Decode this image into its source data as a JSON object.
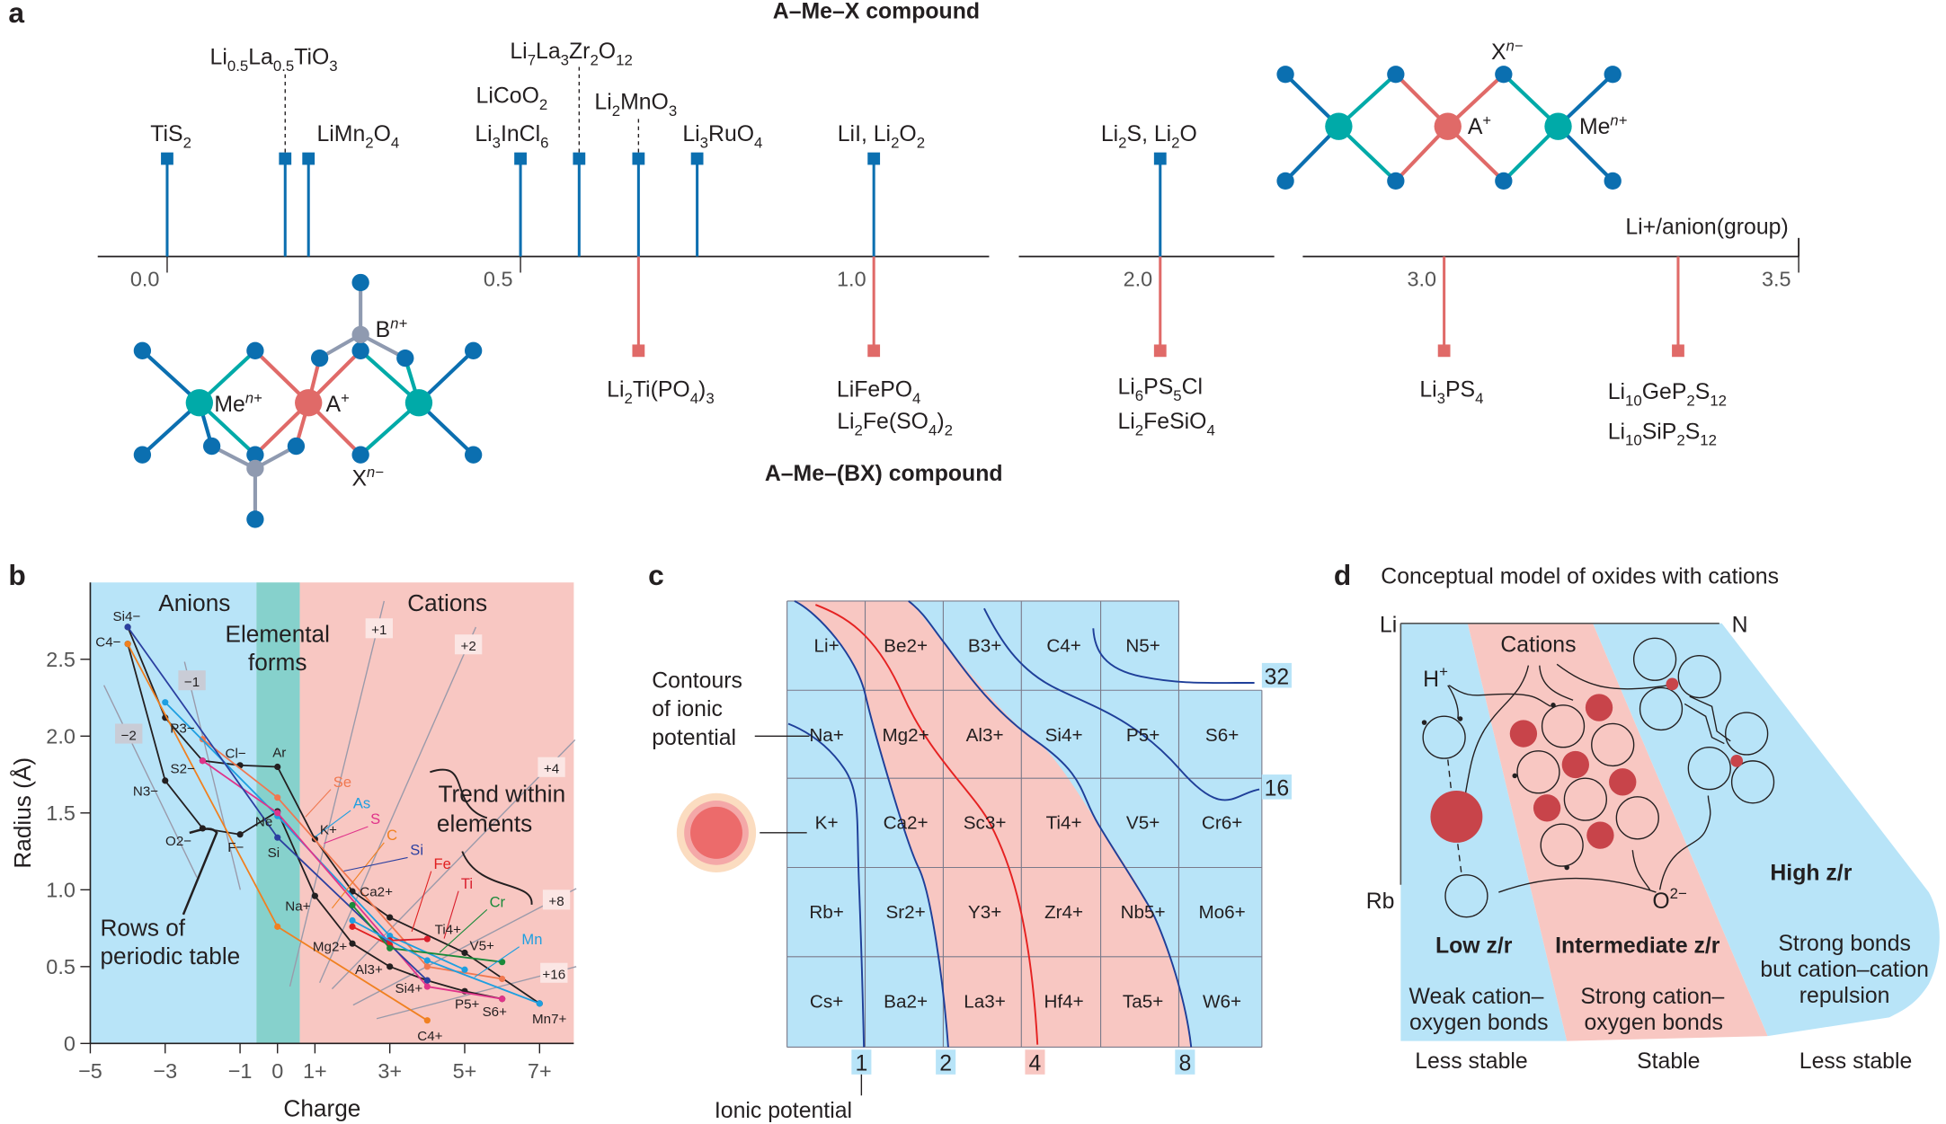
{
  "colors": {
    "anion_region": "#b8e4f8",
    "cation_region": "#f8c7c2",
    "elemental_region": "#86d1cc",
    "x_atom": "#0b6fb0",
    "a_atom": "#e06a68",
    "me_atom": "#00aaa8",
    "b_atom": "#8f9ab0",
    "contour_blue": "#1f3f99",
    "contour_red": "#e52222",
    "cation_dark": "#c8444a"
  },
  "panel_a": {
    "label": "a",
    "title_top": "A–Me–X compound",
    "title_bottom": "A–Me–(BX) compound",
    "axis_label": "Li+/anion(group)",
    "ticks": [
      {
        "label": "0.0",
        "value": 0.0
      },
      {
        "label": "0.5",
        "value": 0.5
      },
      {
        "label": "1.0",
        "value": 1.0
      },
      {
        "label": "2.0",
        "value": 2.0
      },
      {
        "label": "3.0",
        "value": 3.0
      },
      {
        "label": "3.5",
        "value": 3.5
      }
    ],
    "upper": [
      {
        "value": 0.0,
        "labels": [
          "TiS2"
        ]
      },
      {
        "value": 0.167,
        "labels": [
          "Li0.5La0.5TiO3"
        ],
        "dashed": true
      },
      {
        "value": 0.2,
        "labels": [
          "LiMn2O4"
        ]
      },
      {
        "value": 0.5,
        "labels": [
          "LiCoO2",
          "Li3InCl6"
        ]
      },
      {
        "value": 0.583,
        "labels": [
          "Li7La3Zr2O12"
        ],
        "dashed": true
      },
      {
        "value": 0.667,
        "labels": [
          "Li2MnO3"
        ],
        "dashed": true
      },
      {
        "value": 0.75,
        "labels": [
          "Li3RuO4"
        ]
      },
      {
        "value": 1.0,
        "labels": [
          "LiI, Li2O2"
        ]
      },
      {
        "value": 2.0,
        "labels": [
          "Li2S, Li2O"
        ]
      }
    ],
    "lower": [
      {
        "value": 0.667,
        "labels": [
          "Li2Ti(PO4)3"
        ]
      },
      {
        "value": 1.0,
        "labels": [
          "LiFePO4",
          "Li2Fe(SO4)2"
        ]
      },
      {
        "value": 2.0,
        "labels": [
          "Li6PS5Cl",
          "Li2FeSiO4"
        ]
      },
      {
        "value": 3.0,
        "labels": [
          "Li3PS4"
        ]
      },
      {
        "value": 3.33,
        "labels": [
          "Li10GeP2S12",
          "Li10SiP2S12"
        ]
      }
    ],
    "structure_top": {
      "x": "X",
      "x_sup": "n−",
      "a": "A",
      "a_sup": "+",
      "me": "Me",
      "me_sup": "n+"
    },
    "structure_bottom": {
      "x": "X",
      "x_sup": "n−",
      "a": "A",
      "a_sup": "+",
      "me": "Me",
      "me_sup": "n+",
      "b": "B",
      "b_sup": "n+"
    }
  },
  "panel_b": {
    "label": "b",
    "regions": {
      "anions": "Anions",
      "elemental": [
        "Elemental",
        "forms"
      ],
      "cations": "Cations"
    },
    "annotations": {
      "trend": [
        "Trend within",
        "elements"
      ],
      "rows": [
        "Rows of",
        "periodic table"
      ]
    },
    "guide_labels": [
      "+1",
      "+2",
      "+4",
      "+8",
      "+16",
      "−1",
      "−2"
    ]
  },
  "chart_data": {
    "type": "line",
    "xlabel": "Charge",
    "ylabel": "Radius (Å)",
    "xlim": [
      -5,
      8
    ],
    "ylim": [
      0,
      3.0
    ],
    "x_ticks": [
      "−5",
      "−3",
      "−1",
      "0",
      "1+",
      "3+",
      "5+",
      "7+"
    ],
    "x_tick_values": [
      -5,
      -3,
      -1,
      0,
      1,
      3,
      5,
      7
    ],
    "y_ticks": [
      "0",
      "0.5",
      "1.0",
      "1.5",
      "2.0",
      "2.5"
    ],
    "y_tick_values": [
      0,
      0.5,
      1.0,
      1.5,
      2.0,
      2.5
    ],
    "grid": false,
    "series": [
      {
        "color": "#231f20",
        "points": [
          [
            -4,
            2.71
          ],
          [
            -3,
            2.12
          ],
          [
            -2,
            1.84
          ],
          [
            -1,
            1.81
          ],
          [
            0,
            1.8
          ],
          [
            1,
            1.33
          ],
          [
            2,
            0.99
          ],
          [
            3,
            0.82
          ],
          [
            5,
            0.59
          ],
          [
            7,
            0.26
          ]
        ]
      },
      {
        "color": "#231f20",
        "points": [
          [
            -4,
            2.6
          ],
          [
            -3,
            1.71
          ],
          [
            -2,
            1.4
          ],
          [
            -1,
            1.36
          ],
          [
            0,
            1.51
          ],
          [
            1,
            0.96
          ],
          [
            2,
            0.65
          ],
          [
            3,
            0.5
          ],
          [
            4,
            0.41
          ],
          [
            5,
            0.34
          ],
          [
            6,
            0.29
          ]
        ]
      },
      {
        "name": "Se",
        "color": "#f07850",
        "points": [
          [
            -2,
            1.98
          ],
          [
            0,
            1.6
          ],
          [
            4,
            0.5
          ],
          [
            6,
            0.42
          ]
        ]
      },
      {
        "name": "As",
        "color": "#1e9fe0",
        "points": [
          [
            -3,
            2.22
          ],
          [
            0,
            1.48
          ],
          [
            3,
            0.7
          ],
          [
            5,
            0.48
          ]
        ]
      },
      {
        "name": "S",
        "color": "#e0338a",
        "points": [
          [
            -2,
            1.84
          ],
          [
            0,
            1.5
          ],
          [
            4,
            0.37
          ],
          [
            6,
            0.29
          ]
        ]
      },
      {
        "name": "C",
        "color": "#f08020",
        "points": [
          [
            -4,
            2.6
          ],
          [
            0,
            0.76
          ],
          [
            4,
            0.15
          ]
        ]
      },
      {
        "name": "Si",
        "color": "#2b3fa0",
        "points": [
          [
            -4,
            2.71
          ],
          [
            0,
            1.34
          ],
          [
            4,
            0.41
          ]
        ]
      },
      {
        "name": "Fe",
        "color": "#e02020",
        "points": [
          [
            2,
            0.76
          ],
          [
            3,
            0.64
          ]
        ]
      },
      {
        "name": "Ti",
        "color": "#d81e2c",
        "points": [
          [
            3,
            0.67
          ],
          [
            4,
            0.68
          ]
        ]
      },
      {
        "name": "Cr",
        "color": "#1a8a3a",
        "points": [
          [
            2,
            0.9
          ],
          [
            3,
            0.62
          ],
          [
            6,
            0.53
          ]
        ]
      },
      {
        "name": "Mn",
        "color": "#1e9fe0",
        "points": [
          [
            2,
            0.8
          ],
          [
            4,
            0.54
          ],
          [
            7,
            0.26
          ]
        ]
      }
    ],
    "point_labels": [
      {
        "label": "Si4−",
        "x": -4,
        "y": 2.71
      },
      {
        "label": "C4−",
        "x": -4,
        "y": 2.6
      },
      {
        "label": "P3−",
        "x": -3,
        "y": 2.12
      },
      {
        "label": "S2−",
        "x": -2,
        "y": 1.84
      },
      {
        "label": "Cl−",
        "x": -1,
        "y": 1.81
      },
      {
        "label": "Ar",
        "x": 0,
        "y": 1.8
      },
      {
        "label": "N3−",
        "x": -3,
        "y": 1.71
      },
      {
        "label": "O2−",
        "x": -2,
        "y": 1.4
      },
      {
        "label": "F−",
        "x": -1,
        "y": 1.36
      },
      {
        "label": "Ne",
        "x": 0,
        "y": 1.51
      },
      {
        "label": "Si",
        "x": 0,
        "y": 1.34
      },
      {
        "label": "K+",
        "x": 1,
        "y": 1.33
      },
      {
        "label": "Ca2+",
        "x": 2,
        "y": 0.99
      },
      {
        "label": "Na+",
        "x": 1,
        "y": 0.96
      },
      {
        "label": "Ti4+",
        "x": 4,
        "y": 0.68
      },
      {
        "label": "V5+",
        "x": 5,
        "y": 0.59
      },
      {
        "label": "Mg2+",
        "x": 2,
        "y": 0.65
      },
      {
        "label": "Al3+",
        "x": 3,
        "y": 0.5
      },
      {
        "label": "Si4+",
        "x": 4,
        "y": 0.41
      },
      {
        "label": "P5+",
        "x": 5,
        "y": 0.34
      },
      {
        "label": "S6+",
        "x": 6,
        "y": 0.29
      },
      {
        "label": "Mn7+",
        "x": 7,
        "y": 0.26
      },
      {
        "label": "C4+",
        "x": 4,
        "y": 0.15
      }
    ]
  },
  "panel_c": {
    "label": "c",
    "contours_label": [
      "Contours",
      "of ionic",
      "potential"
    ],
    "axis_label": "Ionic potential",
    "rows": [
      [
        "Li+",
        "Be2+",
        "B3+",
        "C4+",
        "N5+"
      ],
      [
        "Na+",
        "Mg2+",
        "Al3+",
        "Si4+",
        "P5+",
        "S6+"
      ],
      [
        "K+",
        "Ca2+",
        "Sc3+",
        "Ti4+",
        "V5+",
        "Cr6+"
      ],
      [
        "Rb+",
        "Sr2+",
        "Y3+",
        "Zr4+",
        "Nb5+",
        "Mo6+"
      ],
      [
        "Cs+",
        "Ba2+",
        "La3+",
        "Hf4+",
        "Ta5+",
        "W6+"
      ]
    ],
    "contour_values": [
      "1",
      "2",
      "4",
      "8",
      "16",
      "32"
    ]
  },
  "panel_d": {
    "label": "d",
    "title": "Conceptual model of oxides with cations",
    "corners": {
      "top_left": "Li",
      "top_right": "N",
      "bottom_left": "Rb"
    },
    "cations_label": "Cations",
    "h_label": "H+",
    "o_label": "O2−",
    "zones": [
      {
        "title": "Low z/r",
        "desc": [
          "Weak cation–",
          "oxygen bonds"
        ],
        "stability": "Less stable"
      },
      {
        "title": "Intermediate z/r",
        "desc": [
          "Strong cation–",
          "oxygen bonds"
        ],
        "stability": "Stable"
      },
      {
        "title": "High z/r",
        "desc": [
          "Strong bonds",
          "but cation–cation",
          "repulsion"
        ],
        "stability": "Less stable"
      }
    ]
  }
}
